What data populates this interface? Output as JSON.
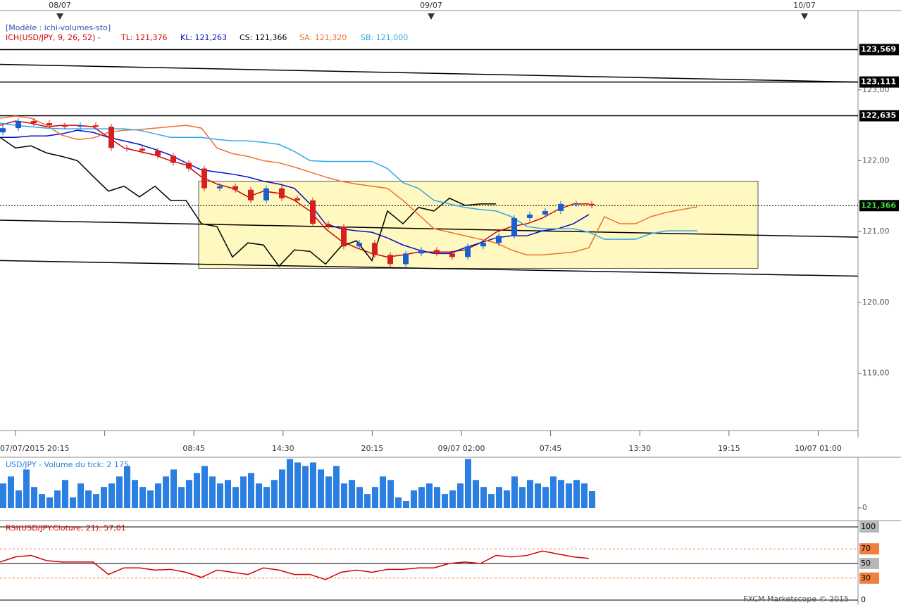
{
  "chart_data": [
    {
      "type": "candlestick",
      "model": "[Modèle : ichi-volumes-sto]",
      "indicator": "ICH(USD/JPY, 9, 26, 52) -",
      "header_dates": [
        "08/07",
        "09/07",
        "10/07"
      ],
      "x_labels": [
        "07/07/2015 20:15",
        null,
        "08:45",
        "14:30",
        "20:15",
        "09/07 02:00",
        "07:45",
        "13:30",
        "19:15",
        "10/07 01:00"
      ],
      "ylim": [
        118.21,
        124.12
      ],
      "yticks": [
        {
          "value": 119,
          "label": "119,00"
        },
        {
          "value": 120,
          "label": "120,00"
        },
        {
          "value": 121,
          "label": "121,00"
        },
        {
          "value": 122,
          "label": "122,00"
        },
        {
          "value": 123,
          "label": "123,00"
        }
      ],
      "grid": false,
      "candles": {
        "up_color": "#1a5fd0",
        "down_color": "#d42020",
        "open": [
          122.4,
          122.46,
          122.56,
          122.53,
          122.5,
          122.48,
          122.5,
          122.48,
          122.18,
          122.17,
          122.14,
          122.07,
          121.97,
          121.89,
          121.61,
          121.64,
          121.59,
          121.44,
          121.61,
          121.47,
          121.44,
          121.11,
          121.07,
          120.79,
          120.84,
          120.67,
          120.54,
          120.69,
          120.74,
          120.69,
          120.64,
          120.79,
          120.84,
          120.94,
          121.19,
          121.24,
          121.29,
          121.39,
          121.39
        ],
        "high": [
          122.5,
          122.6,
          122.6,
          122.57,
          122.54,
          122.54,
          122.54,
          122.52,
          122.22,
          122.21,
          122.18,
          122.11,
          122.01,
          121.93,
          121.68,
          121.68,
          121.63,
          121.65,
          121.65,
          121.51,
          121.48,
          121.15,
          121.11,
          120.88,
          120.88,
          120.71,
          120.73,
          120.78,
          120.78,
          120.73,
          120.83,
          120.88,
          120.98,
          121.23,
          121.28,
          121.33,
          121.43,
          121.43,
          121.43
        ],
        "low": [
          122.36,
          122.42,
          122.49,
          122.46,
          122.44,
          122.44,
          122.44,
          122.14,
          122.13,
          122.1,
          122.03,
          121.93,
          121.85,
          121.57,
          121.57,
          121.55,
          121.4,
          121.4,
          121.43,
          121.4,
          121.07,
          121.03,
          120.75,
          120.75,
          120.63,
          120.5,
          120.5,
          120.65,
          120.65,
          120.6,
          120.6,
          120.75,
          120.8,
          120.9,
          121.15,
          121.2,
          121.25,
          121.35,
          121.33
        ],
        "close": [
          122.46,
          122.56,
          122.53,
          122.5,
          122.48,
          122.5,
          122.48,
          122.18,
          122.17,
          122.14,
          122.07,
          121.97,
          121.89,
          121.61,
          121.64,
          121.59,
          121.44,
          121.61,
          121.47,
          121.44,
          121.11,
          121.07,
          120.79,
          120.84,
          120.67,
          120.54,
          120.69,
          120.74,
          120.69,
          120.64,
          120.79,
          120.84,
          120.94,
          121.19,
          121.24,
          121.29,
          121.39,
          121.39,
          121.37
        ]
      },
      "series": [
        {
          "name": "TL: 121,376",
          "color": "#d40000",
          "values": [
            122.5,
            122.56,
            122.53,
            122.48,
            122.5,
            122.5,
            122.48,
            122.33,
            122.18,
            122.13,
            122.08,
            122.0,
            121.94,
            121.77,
            121.67,
            121.61,
            121.49,
            121.57,
            121.54,
            121.44,
            121.29,
            121.04,
            120.87,
            120.77,
            120.69,
            120.64,
            120.67,
            120.71,
            120.71,
            120.71,
            120.74,
            120.84,
            120.99,
            121.07,
            121.11,
            121.19,
            121.31,
            121.39,
            121.39,
            null,
            null,
            null,
            null,
            null,
            null,
            null
          ]
        },
        {
          "name": "KL: 121,263",
          "color": "#0010c8",
          "values": [
            122.33,
            122.33,
            122.35,
            122.35,
            122.38,
            122.43,
            122.4,
            122.33,
            122.28,
            122.23,
            122.16,
            122.08,
            121.97,
            121.87,
            121.84,
            121.81,
            121.77,
            121.71,
            121.67,
            121.61,
            121.39,
            121.11,
            121.04,
            121.01,
            120.99,
            120.91,
            120.81,
            120.74,
            120.69,
            120.69,
            120.77,
            120.84,
            120.91,
            120.94,
            120.94,
            121.01,
            121.04,
            121.11,
            121.24,
            null,
            null,
            null,
            null,
            null,
            null,
            null
          ]
        },
        {
          "name": "CS: 121,366",
          "color": "#000000",
          "values": [
            122.33,
            122.18,
            122.21,
            122.11,
            122.06,
            122.0,
            121.78,
            121.57,
            121.64,
            121.49,
            121.64,
            121.44,
            121.44,
            121.11,
            121.07,
            120.64,
            120.84,
            120.81,
            120.51,
            120.74,
            120.72,
            120.54,
            120.79,
            120.87,
            120.59,
            121.29,
            121.11,
            121.34,
            121.29,
            121.47,
            121.37,
            121.39,
            121.39,
            null,
            null,
            null,
            null,
            null,
            null,
            null,
            null,
            null,
            null,
            null,
            null,
            null
          ]
        },
        {
          "name": "SA: 121,320",
          "color": "#f07030",
          "values": [
            122.6,
            122.63,
            122.6,
            122.5,
            122.36,
            122.3,
            122.32,
            122.4,
            122.43,
            122.44,
            122.46,
            122.48,
            122.5,
            122.46,
            122.18,
            122.1,
            122.06,
            122.0,
            121.97,
            121.91,
            121.84,
            121.77,
            121.71,
            121.67,
            121.64,
            121.61,
            121.44,
            121.24,
            121.04,
            120.99,
            120.94,
            120.89,
            120.84,
            120.74,
            120.67,
            120.67,
            120.69,
            120.71,
            120.77,
            121.21,
            121.11,
            121.11,
            121.21,
            121.27,
            121.31,
            121.35
          ]
        },
        {
          "name": "SB: 121,000",
          "color": "#30a8e8",
          "values": [
            122.53,
            122.5,
            122.48,
            122.46,
            122.45,
            122.45,
            122.45,
            122.45,
            122.45,
            122.43,
            122.38,
            122.33,
            122.33,
            122.33,
            122.3,
            122.28,
            122.28,
            122.26,
            122.23,
            122.13,
            122.0,
            121.99,
            121.99,
            121.99,
            121.99,
            121.89,
            121.69,
            121.61,
            121.44,
            121.39,
            121.34,
            121.31,
            121.29,
            121.21,
            121.07,
            121.04,
            121.04,
            121.04,
            120.99,
            120.89,
            120.89,
            120.89,
            120.97,
            121.01,
            121.01,
            121.01
          ]
        }
      ],
      "levels": [
        {
          "value": 123.569,
          "label": "123,569"
        },
        {
          "value": 123.111,
          "label": "123,111"
        },
        {
          "value": 122.635,
          "label": "122,635"
        }
      ],
      "current": {
        "value": 121.366,
        "label": "121,366"
      },
      "trend_lines": [
        [
          123.36,
          123.11
        ],
        [
          121.16,
          120.92
        ],
        [
          120.59,
          120.37
        ]
      ],
      "zone": [
        120.48,
        121.71
      ]
    },
    {
      "type": "bar",
      "title": "USD/JPY - Volume du tick: 2 175",
      "color": "#2a7fe0",
      "ylim": [
        0,
        6340
      ],
      "yticks": [
        0
      ],
      "values": [
        3150,
        4050,
        2250,
        4950,
        2700,
        1800,
        1350,
        2250,
        3600,
        1350,
        3150,
        2250,
        1800,
        2700,
        3150,
        4050,
        5400,
        3600,
        2700,
        2250,
        3150,
        4050,
        4950,
        2700,
        3600,
        4500,
        5400,
        4050,
        3150,
        3600,
        2700,
        4050,
        4500,
        3150,
        2700,
        3600,
        4950,
        6300,
        5850,
        5400,
        5850,
        4950,
        4050,
        5400,
        3150,
        3600,
        2700,
        1800,
        2700,
        4050,
        3600,
        1350,
        900,
        2250,
        2700,
        3150,
        2700,
        1800,
        2250,
        3150,
        6300,
        3600,
        2700,
        1800,
        2700,
        2250,
        4050,
        2700,
        3600,
        3150,
        2700,
        4050,
        3600,
        3150,
        3600,
        3150,
        2175
      ]
    },
    {
      "type": "line",
      "title": "RSI(USD/JPY.Cloture, 21): 57,01",
      "ylim": [
        0,
        100
      ],
      "yticks": [
        0,
        30,
        50,
        70,
        100
      ],
      "tick_colors": [
        "#ffffff",
        "#f08040",
        "#b8b8b8",
        "#f08040",
        "#b8b8b8"
      ],
      "tick_styles": [
        "solid",
        "dashed",
        "solid",
        "dashed",
        "solid"
      ],
      "series": [
        {
          "color": "#d40000",
          "values": [
            52,
            59,
            61,
            54,
            52,
            52,
            52,
            35,
            44,
            44,
            41,
            42,
            38,
            31,
            41,
            38,
            35,
            44,
            41,
            35,
            35,
            28,
            38,
            41,
            38,
            42,
            42,
            44,
            44,
            50,
            52,
            50,
            61,
            59,
            61,
            67,
            63,
            59,
            57
          ]
        }
      ]
    }
  ],
  "footer": "FXCM Marketscope © 2015"
}
